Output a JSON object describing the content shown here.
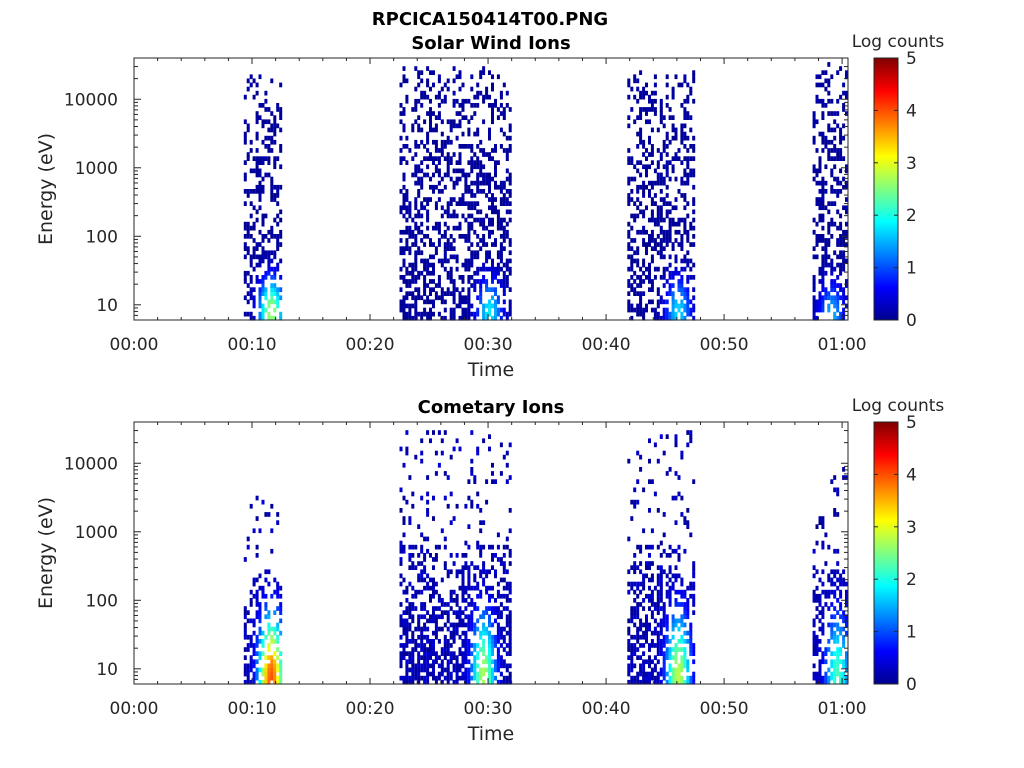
{
  "figure_title": "RPCICA150414T00.PNG",
  "colormap": [
    "#00008f",
    "#0000ff",
    "#0080ff",
    "#00ffff",
    "#80ff80",
    "#ffff00",
    "#ff8000",
    "#ff0000",
    "#800000"
  ],
  "chart_data": [
    {
      "type": "heatmap",
      "title": "Solar Wind Ions",
      "xlabel": "Time",
      "ylabel": "Energy (eV)",
      "x_ticks": [
        "00:00",
        "00:10",
        "00:20",
        "00:30",
        "00:40",
        "00:50",
        "01:00"
      ],
      "xlim_minutes": [
        0,
        60.5
      ],
      "y_scale": "log",
      "y_ticks": [
        "10",
        "100",
        "1000",
        "10000"
      ],
      "ylim": [
        6,
        40000
      ],
      "colorbar": {
        "label": "Log counts",
        "range": [
          0,
          5
        ],
        "ticks": [
          "0",
          "1",
          "2",
          "3",
          "4",
          "5"
        ]
      },
      "bursts": [
        {
          "start_min": 9.3,
          "end_min": 12.5,
          "min_eV": 6,
          "max_eV": 22000,
          "peak_log_counts": 2.7,
          "peak_min": 11.5,
          "peak_eV": 8
        },
        {
          "start_min": 22.5,
          "end_min": 31.8,
          "min_eV": 6,
          "max_eV": 30000,
          "peak_log_counts": 1.8,
          "peak_min": 30.0,
          "peak_eV": 8
        },
        {
          "start_min": 41.8,
          "end_min": 47.5,
          "min_eV": 6,
          "max_eV": 25000,
          "peak_log_counts": 1.7,
          "peak_min": 46.0,
          "peak_eV": 8
        },
        {
          "start_min": 57.5,
          "end_min": 60.5,
          "min_eV": 6,
          "max_eV": 35000,
          "peak_log_counts": 1.5,
          "peak_min": 59.0,
          "peak_eV": 7
        }
      ]
    },
    {
      "type": "heatmap",
      "title": "Cometary Ions",
      "xlabel": "Time",
      "ylabel": "Energy (eV)",
      "x_ticks": [
        "00:00",
        "00:10",
        "00:20",
        "00:30",
        "00:40",
        "00:50",
        "01:00"
      ],
      "xlim_minutes": [
        0,
        60.5
      ],
      "y_scale": "log",
      "y_ticks": [
        "10",
        "100",
        "1000",
        "10000"
      ],
      "ylim": [
        6,
        40000
      ],
      "colorbar": {
        "label": "Log counts",
        "range": [
          0,
          5
        ],
        "ticks": [
          "0",
          "1",
          "2",
          "3",
          "4",
          "5"
        ]
      },
      "bursts": [
        {
          "start_min": 9.3,
          "end_min": 12.5,
          "min_eV": 6,
          "max_eV": 4500,
          "peak_log_counts": 4.0,
          "peak_min": 11.5,
          "peak_eV": 7
        },
        {
          "start_min": 22.5,
          "end_min": 31.8,
          "min_eV": 6,
          "max_eV": 30000,
          "peak_log_counts": 2.7,
          "peak_min": 29.5,
          "peak_eV": 8
        },
        {
          "start_min": 41.8,
          "end_min": 47.5,
          "min_eV": 6,
          "max_eV": 30000,
          "peak_log_counts": 2.8,
          "peak_min": 46.0,
          "peak_eV": 8
        },
        {
          "start_min": 57.5,
          "end_min": 60.5,
          "min_eV": 6,
          "max_eV": 8500,
          "peak_log_counts": 2.2,
          "peak_min": 59.5,
          "peak_eV": 8
        }
      ]
    }
  ]
}
